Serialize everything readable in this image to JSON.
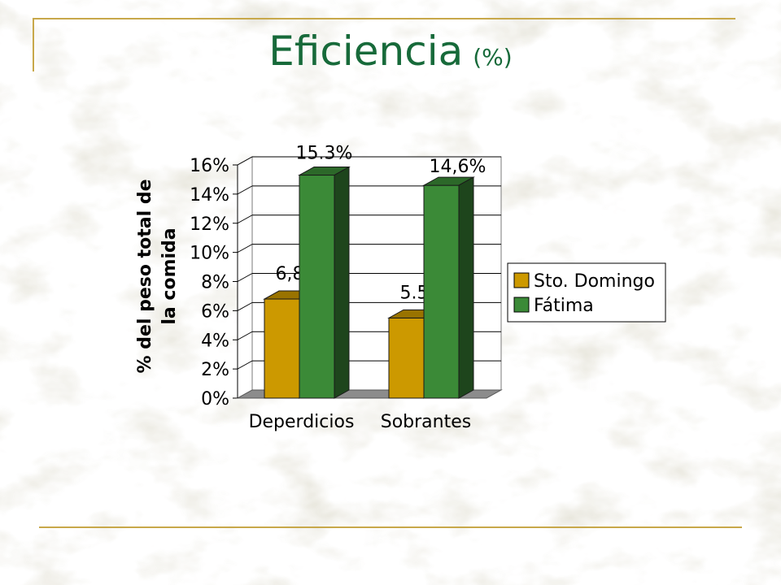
{
  "slide": {
    "title": "Eficiencia",
    "title_unit": "(%)"
  },
  "colors": {
    "title": "#176a3a",
    "rule": "#c8a84a",
    "sto_domingo": "#cc9900",
    "fatima": "#3b8a37"
  },
  "chart_data": {
    "type": "bar",
    "categories": [
      "Deperdicios",
      "Sobrantes"
    ],
    "series": [
      {
        "name": "Sto. Domingo",
        "values": [
          6.8,
          5.5
        ],
        "labels": [
          "6,8%",
          "5.5%"
        ]
      },
      {
        "name": "Fátima",
        "values": [
          15.3,
          14.6
        ],
        "labels": [
          "15.3%",
          "14,6%"
        ]
      }
    ],
    "ylabel": "% del peso total de la comida",
    "ylabel_lines": [
      "% del peso total de",
      "la comida"
    ],
    "ylim": [
      0,
      16
    ],
    "yticks": [
      "0%",
      "2%",
      "4%",
      "6%",
      "8%",
      "10%",
      "12%",
      "14%",
      "16%"
    ],
    "grid": true,
    "legend": "right",
    "style": "3d-clustered"
  }
}
